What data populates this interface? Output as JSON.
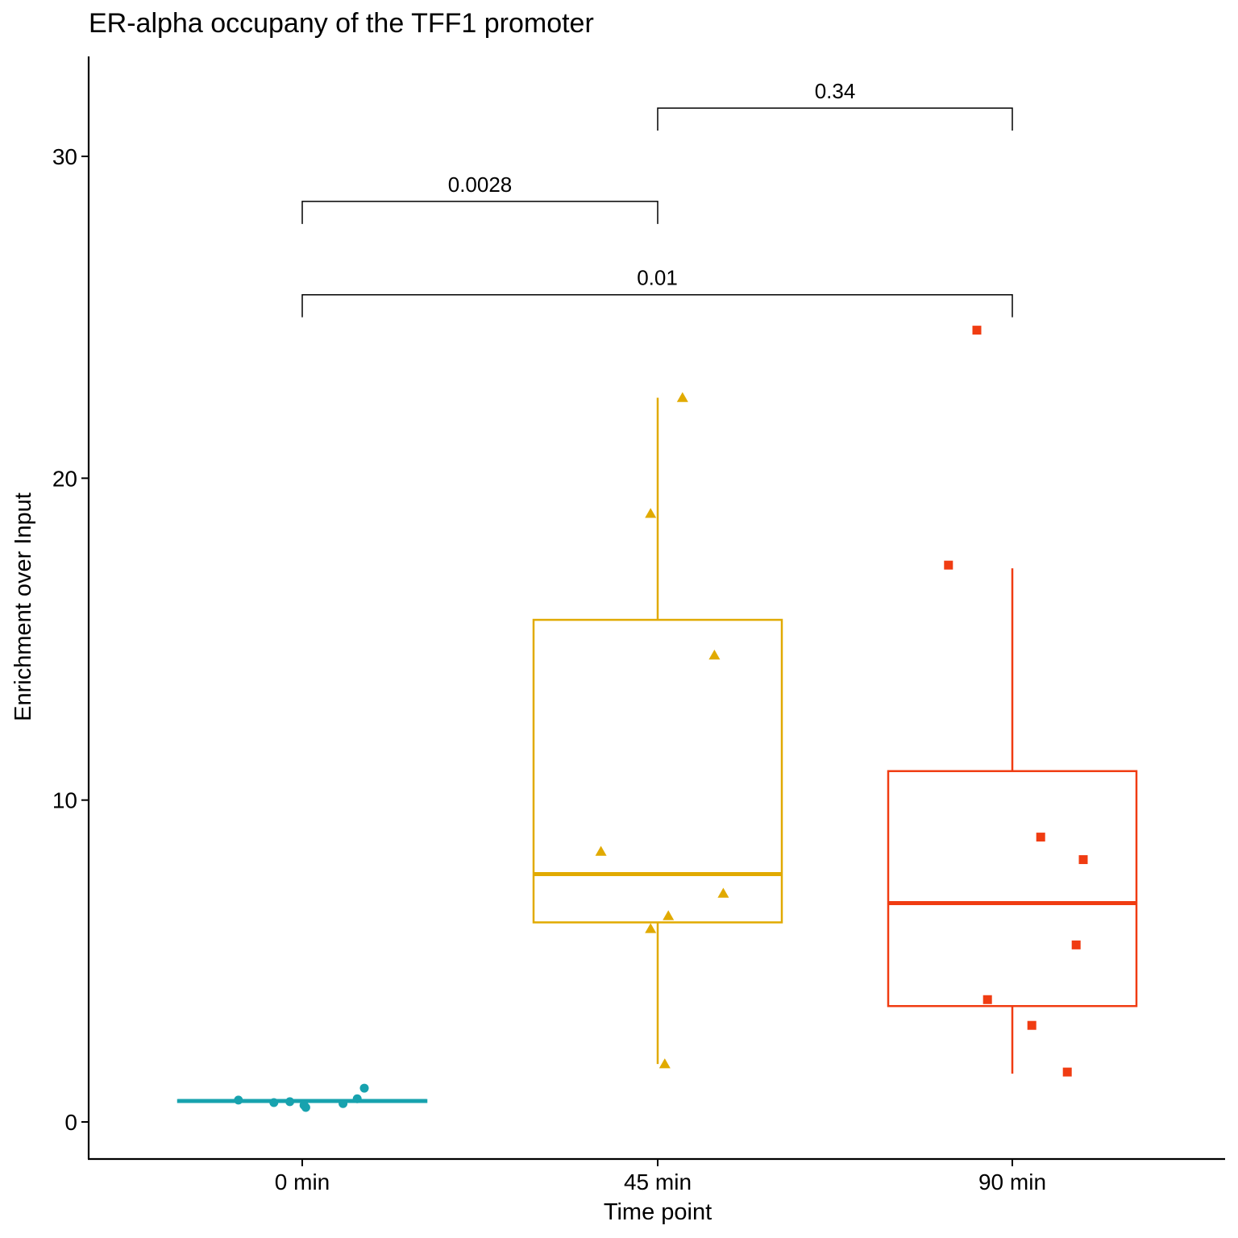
{
  "chart_data": {
    "type": "box",
    "title": "ER-alpha occupany of the TFF1 promoter",
    "xlabel": "Time point",
    "ylabel": "Enrichment over Input",
    "ylim": [
      -1.1,
      33
    ],
    "yticks": [
      0,
      10,
      20,
      30
    ],
    "grid": false,
    "legend": "none",
    "categories": [
      "0 min",
      "45 min",
      "90 min"
    ],
    "groups": [
      {
        "category": "0 min",
        "color": "#17A2AE",
        "marker": "circle",
        "box": {
          "min": 0.6,
          "q1": 0.62,
          "median": 0.65,
          "q3": 0.68,
          "max": 0.7
        },
        "points": [
          {
            "jitter": -0.18,
            "y": 0.68
          },
          {
            "jitter": -0.08,
            "y": 0.6
          },
          {
            "jitter": -0.035,
            "y": 0.63
          },
          {
            "jitter": 0.01,
            "y": 0.45
          },
          {
            "jitter": 0.005,
            "y": 0.52
          },
          {
            "jitter": 0.115,
            "y": 0.57
          },
          {
            "jitter": 0.155,
            "y": 0.72
          },
          {
            "jitter": 0.175,
            "y": 1.05
          }
        ]
      },
      {
        "category": "45 min",
        "color": "#E1AA00",
        "marker": "triangle",
        "box": {
          "min": 1.8,
          "q1": 6.2,
          "median": 7.7,
          "q3": 15.6,
          "max": 22.5
        },
        "points": [
          {
            "jitter": 0.07,
            "y": 22.5
          },
          {
            "jitter": -0.02,
            "y": 18.9
          },
          {
            "jitter": 0.16,
            "y": 14.5
          },
          {
            "jitter": -0.16,
            "y": 8.4
          },
          {
            "jitter": 0.185,
            "y": 7.1
          },
          {
            "jitter": 0.03,
            "y": 6.4
          },
          {
            "jitter": -0.02,
            "y": 6.0
          },
          {
            "jitter": 0.02,
            "y": 1.8
          }
        ]
      },
      {
        "category": "90 min",
        "color": "#F03C12",
        "marker": "square",
        "box": {
          "min": 1.5,
          "q1": 3.6,
          "median": 6.8,
          "q3": 10.9,
          "max": 17.2
        },
        "points": [
          {
            "jitter": -0.1,
            "y": 24.6
          },
          {
            "jitter": -0.18,
            "y": 17.3
          },
          {
            "jitter": 0.08,
            "y": 8.85
          },
          {
            "jitter": 0.2,
            "y": 8.15
          },
          {
            "jitter": 0.18,
            "y": 5.5
          },
          {
            "jitter": -0.07,
            "y": 3.8
          },
          {
            "jitter": 0.055,
            "y": 3.0
          },
          {
            "jitter": 0.155,
            "y": 1.55
          }
        ]
      }
    ],
    "comparisons": [
      {
        "from": "0 min",
        "to": "45 min",
        "label": "0.0028",
        "y": 28.6,
        "tip": 27.9
      },
      {
        "from": "45 min",
        "to": "90 min",
        "label": "0.34",
        "y": 31.5,
        "tip": 30.8
      },
      {
        "from": "0 min",
        "to": "90 min",
        "label": "0.01",
        "y": 25.7,
        "tip": 25.0
      }
    ]
  }
}
